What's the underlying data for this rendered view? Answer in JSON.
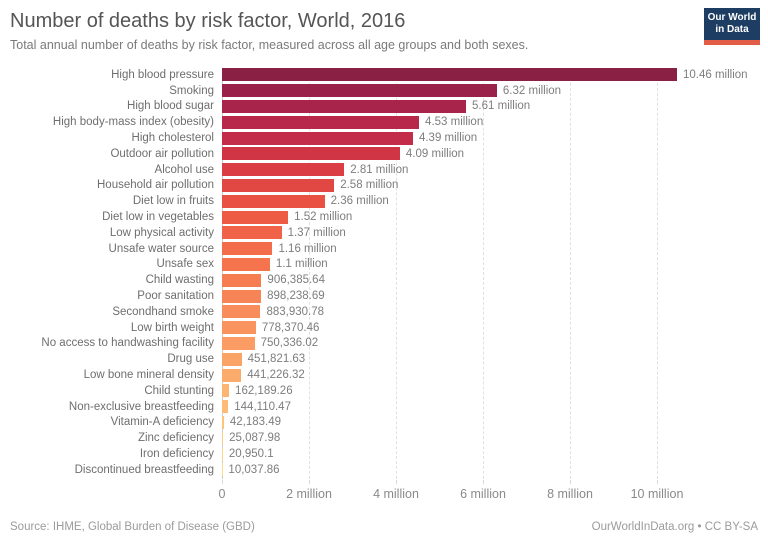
{
  "header": {
    "title": "Number of deaths by risk factor, World, 2016",
    "subtitle": "Total annual number of deaths by risk factor, measured across all age groups and both sexes.",
    "logo": {
      "line1": "Our World",
      "line2": "in Data",
      "bg_color": "#1d3d63",
      "accent_color": "#e25d45"
    }
  },
  "chart_data": {
    "type": "bar",
    "orientation": "horizontal",
    "title": "Number of deaths by risk factor, World, 2016",
    "categories": [
      "High blood pressure",
      "Smoking",
      "High blood sugar",
      "High body-mass index (obesity)",
      "High cholesterol",
      "Outdoor air pollution",
      "Alcohol use",
      "Household air pollution",
      "Diet low in fruits",
      "Diet low in vegetables",
      "Low physical activity",
      "Unsafe water source",
      "Unsafe sex",
      "Child wasting",
      "Poor sanitation",
      "Secondhand smoke",
      "Low birth weight",
      "No access to handwashing facility",
      "Drug use",
      "Low bone mineral density",
      "Child stunting",
      "Non-exclusive breastfeeding",
      "Vitamin-A deficiency",
      "Zinc deficiency",
      "Iron deficiency",
      "Discontinued breastfeeding"
    ],
    "values": [
      10460000,
      6320000,
      5610000,
      4530000,
      4390000,
      4090000,
      2810000,
      2580000,
      2360000,
      1520000,
      1370000,
      1160000,
      1100000,
      906385.64,
      898238.69,
      883930.78,
      778370.46,
      750336.02,
      451821.63,
      441226.32,
      162189.26,
      144110.47,
      42183.49,
      25087.98,
      20950.1,
      10037.86
    ],
    "value_labels": [
      "10.46 million",
      "6.32 million",
      "5.61 million",
      "4.53 million",
      "4.39 million",
      "4.09 million",
      "2.81 million",
      "2.58 million",
      "2.36 million",
      "1.52 million",
      "1.37 million",
      "1.16 million",
      "1.1 million",
      "906,385.64",
      "898,238.69",
      "883,930.78",
      "778,370.46",
      "750,336.02",
      "451,821.63",
      "441,226.32",
      "162,189.26",
      "144,110.47",
      "42,183.49",
      "25,087.98",
      "20,950.1",
      "10,037.86"
    ],
    "bar_colors": [
      "#8b2045",
      "#9a224a",
      "#a9244b",
      "#b7284b",
      "#c42d4a",
      "#d03546",
      "#da3e44",
      "#e24843",
      "#e95243",
      "#ee5b45",
      "#f16348",
      "#f36c4b",
      "#f5744e",
      "#f67c52",
      "#f78456",
      "#f88c5a",
      "#f9945f",
      "#fa9c63",
      "#fba468",
      "#fbac6d",
      "#fcb472",
      "#fcbc77",
      "#fdc47c",
      "#fdcc81",
      "#fed487",
      "#fedb8c"
    ],
    "x_axis": {
      "ticks": [
        {
          "value": 0,
          "label": "0"
        },
        {
          "value": 2000000,
          "label": "2 million"
        },
        {
          "value": 4000000,
          "label": "4 million"
        },
        {
          "value": 6000000,
          "label": "6 million"
        },
        {
          "value": 8000000,
          "label": "8 million"
        },
        {
          "value": 10000000,
          "label": "10 million"
        }
      ],
      "range": [
        0,
        12370000
      ],
      "gridlines": "dashed vertical"
    },
    "legend": "none",
    "ylabel": "",
    "xlabel": ""
  },
  "footer": {
    "source": "Source: IHME, Global Burden of Disease (GBD)",
    "credit": "OurWorldInData.org • CC BY-SA"
  }
}
